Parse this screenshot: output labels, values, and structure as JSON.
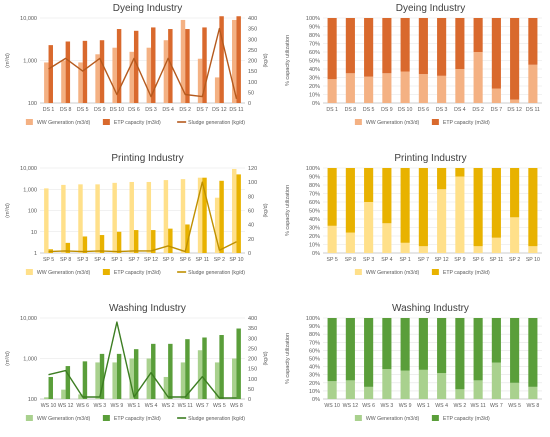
{
  "chart_data": [
    {
      "id": "dyeing-abs",
      "type": "bar",
      "title": "Dyeing Industry",
      "scale": "log",
      "ylabel": "(m³/d)",
      "y2label": "(kg/d)",
      "yticks": [
        "100",
        "1,000",
        "10,000"
      ],
      "ylim": [
        100,
        10000
      ],
      "y2ticks": [
        "0",
        "50",
        "100",
        "150",
        "200",
        "250",
        "300",
        "350",
        "400"
      ],
      "y2lim": [
        0,
        400
      ],
      "categories": [
        "DS 1",
        "DS 8",
        "DS 5",
        "DS 9",
        "DS 10",
        "DS 6",
        "DS 3",
        "DS 4",
        "DS 2",
        "DS 7",
        "DS 12",
        "DS 11"
      ],
      "series": [
        {
          "name": "WW Generation (m3/d)",
          "kind": "bar",
          "color": "#f4b183",
          "values": [
            900,
            1000,
            900,
            1400,
            2000,
            1600,
            2000,
            3000,
            9000,
            1100,
            400,
            9000
          ]
        },
        {
          "name": "ETP capacity (m3/d)",
          "kind": "bar",
          "color": "#d9692d",
          "values": [
            2300,
            2800,
            2900,
            3000,
            5500,
            5000,
            6000,
            5500,
            5500,
            6000,
            11000,
            11000
          ]
        },
        {
          "name": "Sludge generation (kg/d)",
          "kind": "line",
          "axis": "y2",
          "color": "#b55a1e",
          "values": [
            160,
            210,
            150,
            210,
            40,
            210,
            30,
            210,
            40,
            30,
            350,
            20
          ]
        }
      ]
    },
    {
      "id": "dyeing-pct",
      "type": "bar",
      "stacked": true,
      "title": "Dyeing Industry",
      "ylabel": "% capacity utilization",
      "yticks": [
        "0%",
        "10%",
        "20%",
        "30%",
        "40%",
        "50%",
        "60%",
        "70%",
        "80%",
        "90%",
        "100%"
      ],
      "ylim": [
        0,
        100
      ],
      "categories": [
        "DS 1",
        "DS 8",
        "DS 5",
        "DS 9",
        "DS 10",
        "DS 6",
        "DS 3",
        "DS 4",
        "DS 2",
        "DS 7",
        "DS 12",
        "DS 11"
      ],
      "series": [
        {
          "name": "WW Generation (m3/d)",
          "color": "#f4b183",
          "values": [
            28,
            35,
            31,
            35,
            37,
            34,
            32,
            40,
            60,
            17,
            4,
            45
          ]
        },
        {
          "name": "ETP capacity (m3/d)",
          "color": "#d9692d",
          "values": [
            72,
            65,
            69,
            65,
            63,
            66,
            68,
            60,
            40,
            83,
            96,
            55
          ]
        }
      ]
    },
    {
      "id": "printing-abs",
      "type": "bar",
      "title": "Printing Industry",
      "scale": "log",
      "ylabel": "(m³/d)",
      "y2label": "(kg/d)",
      "yticks": [
        "1",
        "10",
        "100",
        "1,000",
        "10,000"
      ],
      "ylim": [
        1,
        10000
      ],
      "y2ticks": [
        "0",
        "20",
        "40",
        "60",
        "80",
        "100",
        "120"
      ],
      "y2lim": [
        0,
        120
      ],
      "categories": [
        "SP 5",
        "SP 8",
        "SP 3",
        "SP 4",
        "SP 1",
        "SP 7",
        "SP 12",
        "SP 9",
        "SP 6",
        "SP 11",
        "SP 2",
        "SP 10"
      ],
      "series": [
        {
          "name": "WW Generation (m3/d)",
          "kind": "bar",
          "color": "#ffe08a",
          "values": [
            1100,
            1600,
            1700,
            1700,
            2000,
            2200,
            2200,
            2700,
            3000,
            3500,
            400,
            9000
          ]
        },
        {
          "name": "ETP capacity (m3/d)",
          "kind": "bar",
          "color": "#e8b200",
          "values": [
            1.5,
            3,
            6,
            7,
            10,
            12,
            12,
            14,
            22,
            3500,
            2500,
            5000
          ]
        },
        {
          "name": "Sludge generation (kg/d)",
          "kind": "line",
          "axis": "y2",
          "color": "#bf9000",
          "values": [
            2,
            3,
            2,
            3,
            2,
            3,
            3,
            10,
            2,
            100,
            4,
            16
          ]
        }
      ]
    },
    {
      "id": "printing-pct",
      "type": "bar",
      "stacked": true,
      "title": "Printing Industry",
      "ylabel": "% capacity utilization",
      "yticks": [
        "0%",
        "10%",
        "20%",
        "30%",
        "40%",
        "50%",
        "60%",
        "70%",
        "80%",
        "90%",
        "100%"
      ],
      "ylim": [
        0,
        100
      ],
      "categories": [
        "SP 5",
        "SP 8",
        "SP 3",
        "SP 4",
        "SP 1",
        "SP 7",
        "SP 12",
        "SP 9",
        "SP 6",
        "SP 11",
        "SP 2",
        "SP 10"
      ],
      "series": [
        {
          "name": "WW Generation (m3/d)",
          "color": "#ffe08a",
          "values": [
            32,
            24,
            60,
            35,
            12,
            8,
            75,
            90,
            8,
            18,
            42,
            8
          ]
        },
        {
          "name": "ETP capacity (m3/d)",
          "color": "#e8b200",
          "values": [
            68,
            76,
            40,
            65,
            88,
            92,
            25,
            10,
            92,
            82,
            58,
            92
          ]
        }
      ]
    },
    {
      "id": "washing-abs",
      "type": "bar",
      "title": "Washing Industry",
      "scale": "log",
      "ylabel": "(m³/d)",
      "y2label": "(kg/d)",
      "yticks": [
        "100",
        "1,000",
        "10,000"
      ],
      "ylim": [
        100,
        10000
      ],
      "y2ticks": [
        "0",
        "50",
        "100",
        "150",
        "200",
        "250",
        "300",
        "350",
        "400"
      ],
      "y2lim": [
        0,
        400
      ],
      "categories": [
        "WS 10",
        "WS 12",
        "WS 6",
        "WS 3",
        "WS 9",
        "WS 1",
        "WS 4",
        "WS 2",
        "WS 11",
        "WS 7",
        "WS 5",
        "WS 8"
      ],
      "series": [
        {
          "name": "WW Generation (m3/d)",
          "kind": "bar",
          "color": "#a9d18e",
          "values": [
            110,
            170,
            130,
            800,
            800,
            1000,
            1000,
            350,
            800,
            1600,
            800,
            1000
          ]
        },
        {
          "name": "ETP capacity (m3/d)",
          "kind": "bar",
          "color": "#5a9e3a",
          "values": [
            350,
            650,
            850,
            1300,
            1300,
            1700,
            2300,
            2300,
            3000,
            3300,
            3800,
            5500
          ]
        },
        {
          "name": "Sludge generation (kg/d)",
          "kind": "line",
          "axis": "y2",
          "color": "#3c7d22",
          "values": [
            120,
            140,
            10,
            10,
            380,
            10,
            130,
            10,
            10,
            110,
            5,
            5
          ]
        }
      ]
    },
    {
      "id": "washing-pct",
      "type": "bar",
      "stacked": true,
      "title": "Washing Industry",
      "ylabel": "% capacity utilization",
      "yticks": [
        "0%",
        "10%",
        "20%",
        "30%",
        "40%",
        "50%",
        "60%",
        "70%",
        "80%",
        "90%",
        "100%"
      ],
      "ylim": [
        0,
        100
      ],
      "categories": [
        "WS 10",
        "WS 12",
        "WS 6",
        "WS 3",
        "WS 9",
        "WS 1",
        "WS 4",
        "WS 2",
        "WS 11",
        "WS 7",
        "WS 5",
        "WS 8"
      ],
      "series": [
        {
          "name": "WW Generation (m3/d)",
          "color": "#a9d18e",
          "values": [
            22,
            23,
            15,
            37,
            35,
            36,
            32,
            12,
            23,
            45,
            20,
            15
          ]
        },
        {
          "name": "ETP capacity (m3/d)",
          "color": "#5a9e3a",
          "values": [
            78,
            77,
            85,
            63,
            65,
            64,
            68,
            88,
            77,
            55,
            80,
            85
          ]
        }
      ]
    }
  ]
}
